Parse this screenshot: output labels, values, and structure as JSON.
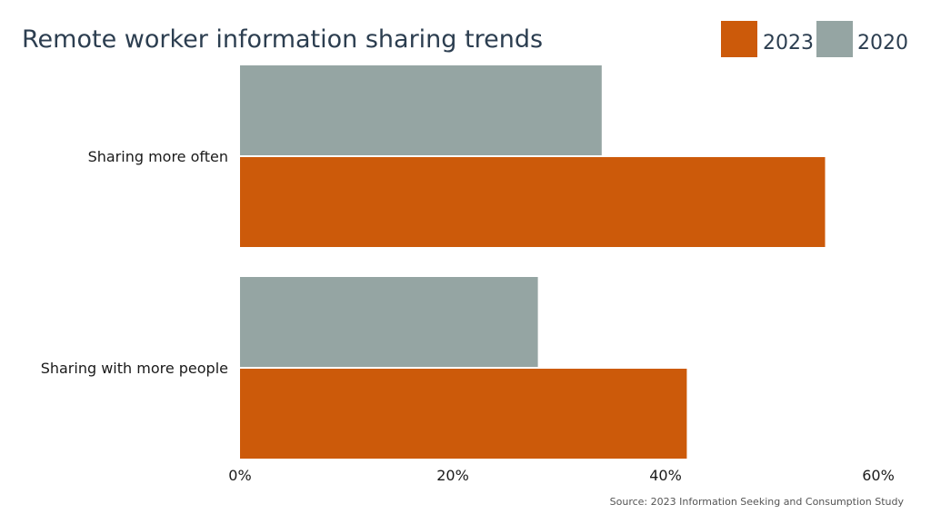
{
  "chart_data": {
    "type": "bar",
    "orientation": "horizontal",
    "title": "Remote worker information sharing trends",
    "categories": [
      "Sharing more often",
      "Sharing with more people"
    ],
    "series": [
      {
        "name": "2020",
        "values": [
          34,
          28
        ],
        "color": "#95a5a3"
      },
      {
        "name": "2023",
        "values": [
          55,
          42
        ],
        "color": "#cc5a0a"
      }
    ],
    "xlim": [
      0,
      60
    ],
    "x_ticks": [
      "0%",
      "20%",
      "40%",
      "60%"
    ],
    "xlabel": "",
    "ylabel": "",
    "grid": false,
    "legend": {
      "placement": "top-right",
      "items": [
        {
          "label": "2023",
          "color": "#cc5a0a"
        },
        {
          "label": "2020",
          "color": "#95a5a3"
        }
      ]
    },
    "source": "Source: 2023 Information Seeking and Consumption Study"
  }
}
